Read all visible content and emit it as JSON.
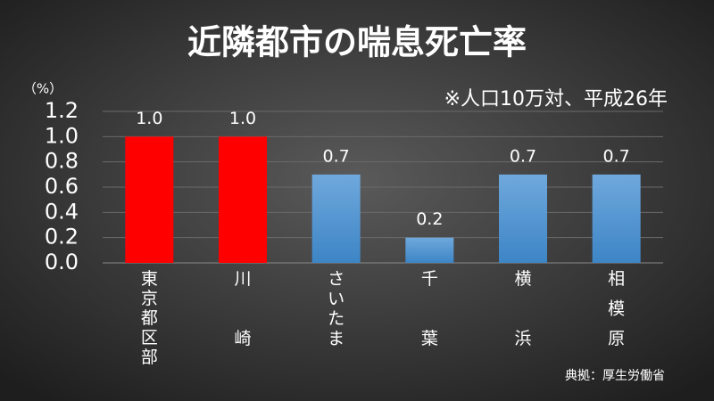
{
  "chart_data": {
    "type": "bar",
    "title": "近隣都市の喘息死亡率",
    "y_unit": "（%）",
    "annotation": "※人口10万対、平成26年",
    "source": "典拠：厚生労働省",
    "categories": [
      "東京都区部",
      "川崎",
      "さいたま",
      "千葉",
      "横浜",
      "相模原"
    ],
    "values": [
      1.0,
      1.0,
      0.7,
      0.2,
      0.7,
      0.7
    ],
    "value_labels": [
      "1.0",
      "1.0",
      "0.7",
      "0.2",
      "0.7",
      "0.7"
    ],
    "colors": [
      "#ff0000",
      "#ff0000",
      "#5b9bd5",
      "#5b9bd5",
      "#5b9bd5",
      "#5b9bd5"
    ],
    "ylim": [
      0,
      1.2
    ],
    "yticks": [
      {
        "value": 0,
        "label": "0.0"
      },
      0.2,
      0.4,
      0.6,
      0.8,
      {
        "value": 1,
        "label": "1.0"
      },
      1.2
    ],
    "grid": true
  }
}
